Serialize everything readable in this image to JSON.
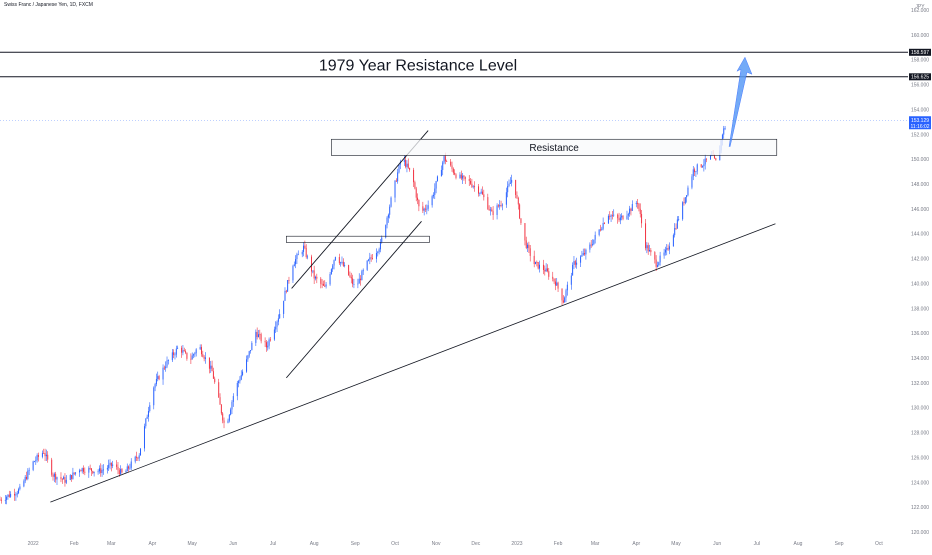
{
  "header": {
    "symbol_title": "Swiss Franc / Japanese Yen, 1D, FXCM"
  },
  "chart_data": {
    "type": "candlestick",
    "y_unit": "JPY",
    "ylim": [
      120,
      162
    ],
    "y_ticks": [
      "120.000",
      "122.000",
      "124.000",
      "126.000",
      "128.000",
      "130.000",
      "132.000",
      "134.000",
      "136.000",
      "138.000",
      "140.000",
      "142.000",
      "144.000",
      "146.000",
      "148.000",
      "150.000",
      "152.000",
      "154.000",
      "156.000",
      "158.000",
      "160.000",
      "162.000"
    ],
    "x_ticks": [
      {
        "label": "2022",
        "day": 0
      },
      {
        "label": "Feb",
        "day": 31
      },
      {
        "label": "Mar",
        "day": 59
      },
      {
        "label": "Apr",
        "day": 90
      },
      {
        "label": "May",
        "day": 120
      },
      {
        "label": "Jun",
        "day": 151
      },
      {
        "label": "Jul",
        "day": 181
      },
      {
        "label": "Aug",
        "day": 212
      },
      {
        "label": "Sep",
        "day": 243
      },
      {
        "label": "Oct",
        "day": 273
      },
      {
        "label": "Nov",
        "day": 304
      },
      {
        "label": "Dec",
        "day": 334
      },
      {
        "label": "2023",
        "day": 365
      },
      {
        "label": "Feb",
        "day": 396
      },
      {
        "label": "Mar",
        "day": 424
      },
      {
        "label": "Apr",
        "day": 455
      },
      {
        "label": "May",
        "day": 485
      },
      {
        "label": "Jun",
        "day": 516
      },
      {
        "label": "Jul",
        "day": 546
      },
      {
        "label": "Aug",
        "day": 577
      },
      {
        "label": "Sep",
        "day": 608
      },
      {
        "label": "Oct",
        "day": 638
      }
    ],
    "x_range_days": [
      -25,
      660
    ],
    "price_path": [
      [
        -25,
        122.6
      ],
      [
        -10,
        123.4
      ],
      [
        0,
        125.6
      ],
      [
        8,
        126.5
      ],
      [
        15,
        124.6
      ],
      [
        25,
        124.1
      ],
      [
        35,
        125.1
      ],
      [
        50,
        124.9
      ],
      [
        60,
        125.4
      ],
      [
        68,
        124.6
      ],
      [
        80,
        126.3
      ],
      [
        90,
        131.5
      ],
      [
        100,
        133.5
      ],
      [
        110,
        134.9
      ],
      [
        118,
        133.8
      ],
      [
        125,
        135.0
      ],
      [
        135,
        132.9
      ],
      [
        145,
        128.3
      ],
      [
        152,
        131.4
      ],
      [
        160,
        133.4
      ],
      [
        168,
        136.1
      ],
      [
        176,
        134.9
      ],
      [
        186,
        137.6
      ],
      [
        196,
        141.6
      ],
      [
        204,
        142.9
      ],
      [
        212,
        140.5
      ],
      [
        220,
        139.6
      ],
      [
        228,
        142.3
      ],
      [
        236,
        141.1
      ],
      [
        243,
        139.6
      ],
      [
        252,
        141.6
      ],
      [
        262,
        143.1
      ],
      [
        270,
        146.7
      ],
      [
        278,
        150.2
      ],
      [
        286,
        148.6
      ],
      [
        292,
        145.6
      ],
      [
        300,
        146.6
      ],
      [
        310,
        150.1
      ],
      [
        320,
        148.6
      ],
      [
        330,
        148.1
      ],
      [
        338,
        147.3
      ],
      [
        346,
        145.6
      ],
      [
        354,
        146.6
      ],
      [
        362,
        148.6
      ],
      [
        370,
        143.6
      ],
      [
        378,
        141.6
      ],
      [
        386,
        141.1
      ],
      [
        394,
        140.1
      ],
      [
        400,
        138.6
      ],
      [
        408,
        141.6
      ],
      [
        418,
        142.6
      ],
      [
        426,
        144.1
      ],
      [
        434,
        145.6
      ],
      [
        442,
        145.1
      ],
      [
        448,
        145.7
      ],
      [
        456,
        146.6
      ],
      [
        462,
        143.1
      ],
      [
        470,
        141.6
      ],
      [
        478,
        142.6
      ],
      [
        488,
        145.6
      ],
      [
        498,
        149.1
      ],
      [
        506,
        149.7
      ],
      [
        512,
        150.2
      ],
      [
        516,
        149.6
      ],
      [
        520,
        152.1
      ],
      [
        524,
        153.129
      ]
    ],
    "resistance_levels": [
      {
        "label": "158.597",
        "price": 158.597
      },
      {
        "label": "156.625",
        "price": 156.625
      }
    ],
    "current_price": {
      "label": "153.129",
      "countdown": "11:16:02",
      "price": 153.129
    },
    "annotations": {
      "big_level_label": "1979 Year Resistance Level",
      "resistance_box_label": "Resistance",
      "resistance_zone": {
        "low": 150.3,
        "high": 151.6
      },
      "small_zone": {
        "low": 143.3,
        "high": 143.8
      }
    },
    "colors": {
      "up": "#2962ff",
      "down": "#f23645",
      "background": "#ffffff",
      "text": "#131722",
      "axis_text": "#787b86",
      "price_badge": "#2962ff",
      "label_badge": "#131722",
      "arrow": "#5b9cf6",
      "box_fill": "#f8f9fb"
    }
  }
}
